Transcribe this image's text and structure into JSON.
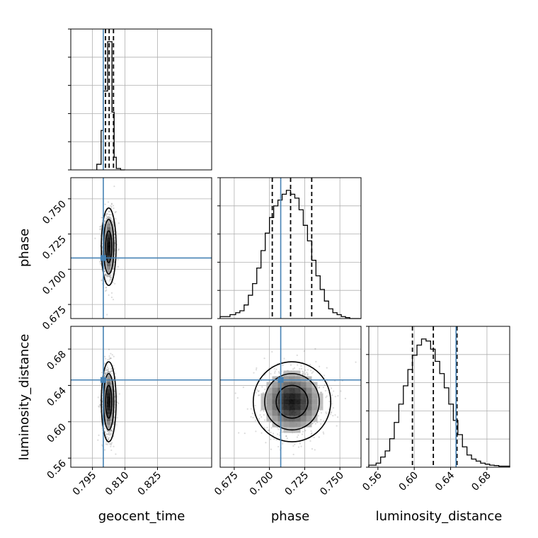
{
  "colors": {
    "truth": "#4682b4",
    "hist": "#000000",
    "grid": "#b0b0b0",
    "density_dark": "#000000"
  },
  "chart_data": {
    "type": "corner",
    "grid": true,
    "parameters": [
      "geocent_time",
      "phase",
      "luminosity_distance"
    ],
    "truths": [
      0.8,
      0.708,
      0.646
    ],
    "quantiles": {
      "geocent_time": [
        0.801,
        0.8027,
        0.8047
      ],
      "phase": [
        0.702,
        0.715,
        0.73
      ],
      "luminosity_distance": [
        0.598,
        0.621,
        0.647
      ]
    },
    "ranges": {
      "geocent_time": [
        0.785,
        0.85
      ],
      "phase": [
        0.665,
        0.765
      ],
      "luminosity_distance": [
        0.55,
        0.705
      ]
    },
    "ticks": {
      "geocent_time": [
        "0.795",
        "0.810",
        "0.825"
      ],
      "phase": [
        "0.675",
        "0.700",
        "0.725",
        "0.750"
      ],
      "luminosity_distance": [
        "0.56",
        "0.60",
        "0.64",
        "0.68"
      ]
    },
    "tick_values": {
      "geocent_time": [
        0.795,
        0.81,
        0.825
      ],
      "phase": [
        0.675,
        0.7,
        0.725,
        0.75
      ],
      "luminosity_distance": [
        0.56,
        0.6,
        0.64,
        0.68
      ]
    },
    "marginals": {
      "geocent_time": {
        "bin_edges": [
          0.797,
          0.799,
          0.8,
          0.801,
          0.802,
          0.803,
          0.804,
          0.805,
          0.806,
          0.808,
          0.81
        ],
        "counts": [
          4,
          28,
          56,
          56,
          91,
          91,
          41,
          9,
          1,
          0
        ]
      },
      "phase": {
        "bin_edges": [
          0.665,
          0.672,
          0.676,
          0.679,
          0.682,
          0.685,
          0.688,
          0.691,
          0.694,
          0.697,
          0.7,
          0.703,
          0.706,
          0.709,
          0.712,
          0.715,
          0.718,
          0.721,
          0.724,
          0.727,
          0.73,
          0.733,
          0.736,
          0.739,
          0.742,
          0.745,
          0.748,
          0.751,
          0.754,
          0.757,
          0.765
        ],
        "counts": [
          1,
          2,
          3,
          4,
          7,
          12,
          18,
          26,
          35,
          44,
          52,
          58,
          61,
          64,
          66,
          64,
          62,
          56,
          48,
          40,
          30,
          22,
          15,
          9,
          5,
          3,
          2,
          1,
          0.5,
          0
        ]
      },
      "luminosity_distance": {
        "bin_edges": [
          0.55,
          0.558,
          0.563,
          0.568,
          0.573,
          0.578,
          0.583,
          0.588,
          0.593,
          0.598,
          0.603,
          0.608,
          0.613,
          0.618,
          0.623,
          0.628,
          0.633,
          0.638,
          0.643,
          0.648,
          0.653,
          0.658,
          0.663,
          0.668,
          0.673,
          0.678,
          0.683,
          0.688,
          0.693,
          0.705
        ],
        "counts": [
          1,
          2,
          5,
          8,
          14,
          22,
          31,
          40,
          48,
          55,
          60,
          63,
          62,
          58,
          52,
          46,
          39,
          31,
          23,
          16,
          10,
          6,
          4,
          3,
          2,
          1.5,
          1,
          0.8,
          0.5
        ]
      }
    }
  }
}
